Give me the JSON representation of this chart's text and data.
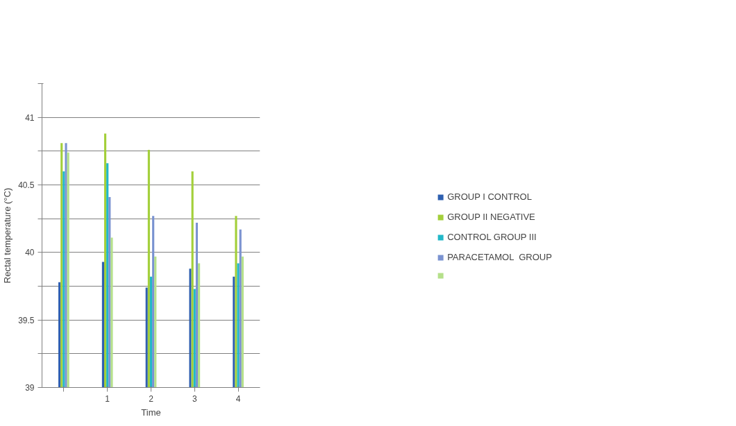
{
  "chart_data": {
    "type": "bar",
    "xlabel": "Time",
    "ylabel": "Rectal temperature (°C)",
    "categories": [
      null,
      "1",
      "2",
      "3",
      "4"
    ],
    "series": [
      {
        "name": "GROUP I CONTROL",
        "color": "#2e5fb0",
        "values": [
          39.78,
          39.93,
          39.74,
          39.88,
          39.82
        ]
      },
      {
        "name": "GROUP II NEGATIVE",
        "color": "#a3cf3a",
        "values": [
          40.81,
          40.88,
          40.76,
          40.6,
          40.27
        ]
      },
      {
        "name": "CONTROL GROUP III",
        "color": "#22b8c8",
        "values": [
          40.6,
          40.66,
          39.82,
          39.73,
          39.92
        ]
      },
      {
        "name": "PARACETAMOL  GROUP",
        "color": "#7b93d1",
        "values": [
          40.81,
          40.41,
          40.27,
          40.22,
          40.17
        ]
      },
      {
        "color": "#b5e08a",
        "values": [
          40.74,
          40.11,
          39.97,
          39.92,
          39.97
        ]
      }
    ],
    "ylim": [
      39,
      41.25
    ],
    "yticks": [
      39,
      {
        "value": 39.25,
        "label": null
      },
      39.5,
      {
        "value": 39.75,
        "label": null
      },
      40,
      {
        "value": 40.25,
        "label": null
      },
      40.5,
      {
        "value": 40.75,
        "label": null
      },
      41,
      {
        "value": 41.25,
        "label": null
      }
    ],
    "grid": "y",
    "legend": "right"
  }
}
